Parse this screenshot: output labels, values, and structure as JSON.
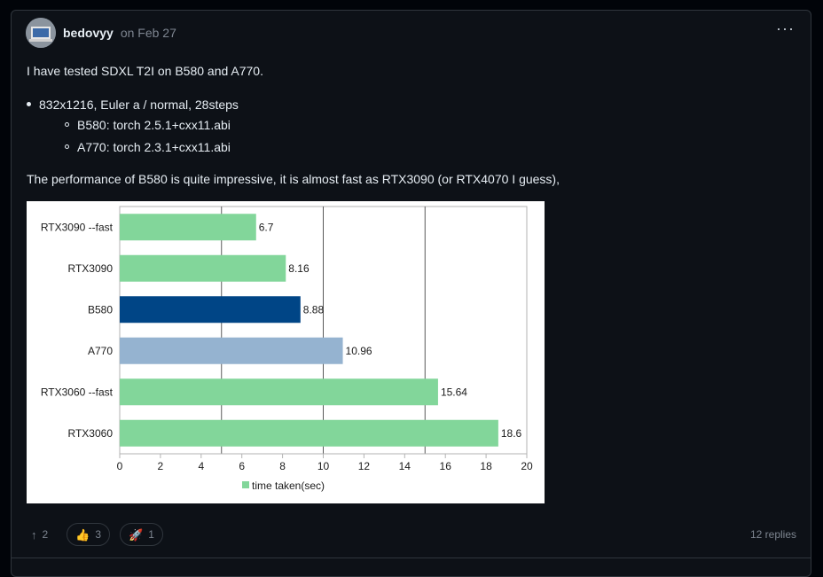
{
  "comment": {
    "author": "bedovyy",
    "date": "on Feb 27",
    "more_icon": "···",
    "intro": "I have tested SDXL T2I on B580 and A770.",
    "list": {
      "item": "832x1216, Euler a / normal, 28steps",
      "subitems": [
        "B580: torch 2.5.1+cxx11.abi",
        "A770: torch 2.3.1+cxx11.abi"
      ]
    },
    "summary": "The performance of B580 is quite impressive, it is almost fast as RTX3090 (or RTX4070 I guess),"
  },
  "chart_data": {
    "type": "bar",
    "orientation": "horizontal",
    "categories": [
      "RTX3090 --fast",
      "RTX3090",
      "B580",
      "A770",
      "RTX3060 --fast",
      "RTX3060"
    ],
    "series": [
      {
        "name": "time taken(sec)",
        "values": [
          6.7,
          8.16,
          8.88,
          10.96,
          15.64,
          18.6
        ]
      }
    ],
    "bar_colors": [
      "#82d69a",
      "#82d69a",
      "#004586",
      "#95b3d0",
      "#82d69a",
      "#82d69a"
    ],
    "data_labels": [
      "6.7",
      "8.16",
      "8.88",
      "10.96",
      "15.64",
      "18.6"
    ],
    "xlim": [
      0,
      20
    ],
    "x_ticks": [
      0,
      2,
      4,
      6,
      8,
      10,
      12,
      14,
      16,
      18,
      20
    ],
    "major_gridlines": [
      5,
      10,
      15
    ],
    "legend_position": "bottom",
    "legend_color": "#82d69a",
    "title": "",
    "xlabel": "",
    "ylabel": ""
  },
  "reactions": [
    {
      "icon": "arrow-up-icon",
      "glyph": "↑",
      "count": "2"
    },
    {
      "icon": "thumbs-up-icon",
      "glyph": "👍",
      "count": "3"
    },
    {
      "icon": "rocket-icon",
      "glyph": "🚀",
      "count": "1"
    }
  ],
  "replies": "12 replies"
}
